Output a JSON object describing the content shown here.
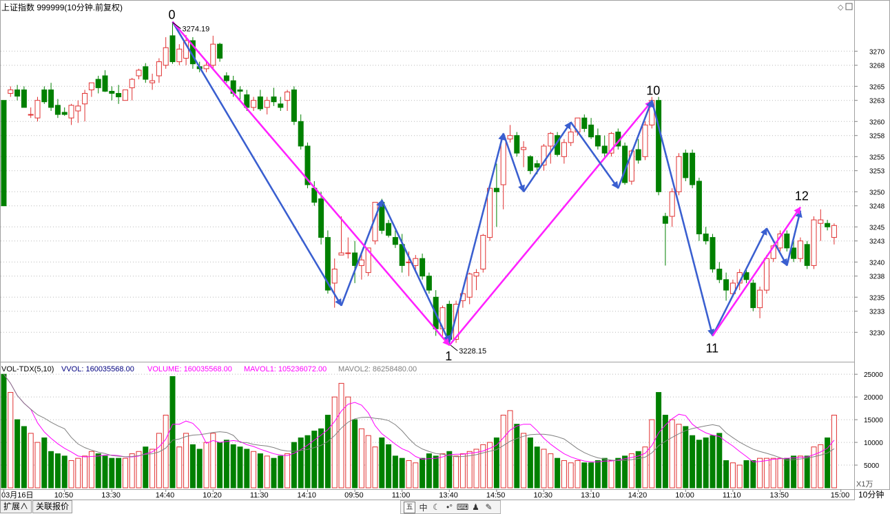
{
  "header": {
    "title": "上证指数 999999(10分钟.前复权)"
  },
  "price_axis": {
    "ticks": [
      "3270",
      "3268",
      "3265",
      "3263",
      "3260",
      "3258",
      "3255",
      "3253",
      "3250",
      "3248",
      "3245",
      "3243",
      "3240",
      "3238",
      "3235",
      "3233",
      "3230"
    ]
  },
  "volume_panel": {
    "indicator": "VOL-TDX(5,10)",
    "vvol_label": "VVOL: 160035568.00",
    "volume_label": "VOLUME: 160035568.00",
    "mavol1_label": "MAVOL1: 105236072.00",
    "mavol2_label": "MAVOL2: 86258480.00",
    "ticks": [
      "25000",
      "20000",
      "15000",
      "10000",
      "5000"
    ],
    "unit": "X1万"
  },
  "time_axis": {
    "labels": [
      "03月16日",
      "10:50",
      "13:30",
      "14:40",
      "10:20",
      "11:30",
      "14:10",
      "09:50",
      "11:00",
      "13:40",
      "14:50",
      "10:30",
      "13:10",
      "14:20",
      "10:00",
      "11:10",
      "13:50",
      "15:00"
    ],
    "period": "10分钟"
  },
  "annotations": {
    "high_label": "3274.19",
    "low_label": "3228.15",
    "wave_labels": [
      "0",
      "1",
      "10",
      "11",
      "12"
    ]
  },
  "bottom_bar": {
    "tabs": [
      "扩展∧",
      "关联报价"
    ],
    "tools": [
      "五",
      "中",
      "moon-icon",
      "settings-icon",
      "keyboard-icon",
      "user-icon",
      "wrench-icon"
    ]
  },
  "colors": {
    "up": "#e03030",
    "down": "#008000",
    "mavol1": "#ff00ff",
    "mavol2": "#808080",
    "wave_blue": "#3a5fd0",
    "wave_magenta": "#ff22ff"
  },
  "chart_data": {
    "type": "candlestick",
    "price_range": [
      3226.5,
      3276.5
    ],
    "volume_range": [
      0,
      27000
    ],
    "candles": [
      [
        3263.0,
        3263.0,
        3248.0,
        3248.0,
        25000
      ],
      [
        3264.0,
        3265.0,
        3263.5,
        3264.5,
        21000
      ],
      [
        3264.5,
        3265.2,
        3263.0,
        3263.6,
        15000
      ],
      [
        3264.5,
        3265.0,
        3262.0,
        3262.0,
        13500
      ],
      [
        3261.0,
        3262.0,
        3260.5,
        3261.0,
        12000
      ],
      [
        3260.5,
        3263.5,
        3260.0,
        3263.0,
        10000
      ],
      [
        3264.5,
        3265.0,
        3262.5,
        3262.8,
        11000
      ],
      [
        3264.5,
        3265.5,
        3261.5,
        3262.0,
        8000
      ],
      [
        3262.3,
        3263.2,
        3260.5,
        3261.0,
        7500
      ],
      [
        3261.3,
        3262.0,
        3260.8,
        3261.0,
        7000
      ],
      [
        3260.5,
        3262.5,
        3259.5,
        3262.3,
        6000
      ],
      [
        3261.5,
        3263.0,
        3259.8,
        3262.2,
        6500
      ],
      [
        3262.5,
        3264.5,
        3260.0,
        3264.0,
        7000
      ],
      [
        3264.5,
        3265.5,
        3263.5,
        3265.5,
        8000
      ],
      [
        3266.0,
        3266.5,
        3264.0,
        3264.8,
        7500
      ],
      [
        3266.5,
        3267.3,
        3264.2,
        3264.3,
        7000
      ],
      [
        3264.3,
        3265.0,
        3263.0,
        3264.0,
        6500
      ],
      [
        3264.0,
        3265.2,
        3262.5,
        3263.5,
        6500
      ],
      [
        3263.0,
        3264.5,
        3263.0,
        3264.5,
        6500
      ],
      [
        3264.8,
        3266.2,
        3263.0,
        3266.0,
        7500
      ],
      [
        3266.5,
        3267.5,
        3266.0,
        3267.3,
        8000
      ],
      [
        3267.8,
        3268.3,
        3265.5,
        3266.0,
        9000
      ],
      [
        3265.5,
        3266.8,
        3264.5,
        3265.8,
        8500
      ],
      [
        3266.5,
        3269.0,
        3265.5,
        3268.5,
        12000
      ],
      [
        3268.0,
        3272.0,
        3267.5,
        3270.5,
        16000
      ],
      [
        3272.2,
        3274.2,
        3268.2,
        3268.5,
        24500
      ],
      [
        3268.5,
        3271.0,
        3268.0,
        3270.3,
        9000
      ],
      [
        3269.0,
        3272.3,
        3268.0,
        3271.5,
        12000
      ],
      [
        3271.5,
        3272.0,
        3267.5,
        3268.2,
        9500
      ],
      [
        3267.8,
        3268.5,
        3267.0,
        3267.5,
        8500
      ],
      [
        3267.5,
        3268.5,
        3267.0,
        3268.0,
        10000
      ],
      [
        3268.0,
        3272.2,
        3267.5,
        3271.0,
        12000
      ],
      [
        3271.0,
        3271.2,
        3268.5,
        3269.0,
        10000
      ],
      [
        3266.5,
        3267.0,
        3265.5,
        3265.8,
        10500
      ],
      [
        3265.8,
        3266.5,
        3263.5,
        3264.0,
        9500
      ],
      [
        3264.5,
        3265.0,
        3263.0,
        3264.3,
        9000
      ],
      [
        3263.8,
        3264.5,
        3261.5,
        3262.0,
        8500
      ],
      [
        3262.0,
        3263.5,
        3261.5,
        3263.0,
        8000
      ],
      [
        3263.5,
        3264.5,
        3261.5,
        3261.8,
        7500
      ],
      [
        3262.0,
        3263.5,
        3261.0,
        3263.0,
        7000
      ],
      [
        3263.5,
        3264.8,
        3262.2,
        3262.8,
        6500
      ],
      [
        3262.5,
        3263.5,
        3261.5,
        3262.0,
        7000
      ],
      [
        3263.0,
        3264.5,
        3261.5,
        3264.2,
        7500
      ],
      [
        3264.5,
        3265.0,
        3259.5,
        3260.0,
        10000
      ],
      [
        3260.0,
        3261.0,
        3256.0,
        3256.5,
        11000
      ],
      [
        3256.5,
        3257.0,
        3250.5,
        3251.0,
        11500
      ],
      [
        3250.5,
        3251.5,
        3248.0,
        3248.5,
        12500
      ],
      [
        3249.0,
        3250.0,
        3242.5,
        3243.5,
        13000
      ],
      [
        3243.5,
        3244.5,
        3235.5,
        3236.0,
        16000
      ],
      [
        3237.0,
        3240.5,
        3233.5,
        3239.0,
        20000
      ],
      [
        3241.0,
        3246.5,
        3241.0,
        3241.3,
        23000
      ],
      [
        3241.3,
        3243.5,
        3240.5,
        3241.3,
        20000
      ],
      [
        3241.3,
        3243.0,
        3237.0,
        3239.5,
        15000
      ],
      [
        3239.5,
        3241.2,
        3237.5,
        3240.3,
        13000
      ],
      [
        3238.5,
        3242.0,
        3238.0,
        3242.0,
        11500
      ],
      [
        3243.0,
        3248.5,
        3242.5,
        3248.5,
        9000
      ],
      [
        3248.5,
        3249.0,
        3244.0,
        3244.5,
        11000
      ],
      [
        3245.5,
        3246.0,
        3243.5,
        3243.8,
        9500
      ],
      [
        3243.5,
        3244.5,
        3242.0,
        3242.5,
        7000
      ],
      [
        3242.5,
        3244.0,
        3238.5,
        3239.5,
        6500
      ],
      [
        3240.0,
        3241.5,
        3238.0,
        3240.0,
        6000
      ],
      [
        3239.5,
        3241.0,
        3238.5,
        3240.5,
        5500
      ],
      [
        3240.5,
        3241.2,
        3237.5,
        3238.0,
        6500
      ],
      [
        3238.0,
        3238.5,
        3235.5,
        3236.0,
        7500
      ],
      [
        3235.0,
        3236.0,
        3229.5,
        3230.5,
        7000
      ],
      [
        3230.5,
        3233.8,
        3229.5,
        3233.5,
        7500
      ],
      [
        3234.0,
        3234.5,
        3228.2,
        3229.0,
        8000
      ],
      [
        3229.0,
        3234.5,
        3228.5,
        3234.0,
        7000
      ],
      [
        3234.5,
        3236.0,
        3233.5,
        3235.5,
        7500
      ],
      [
        3235.0,
        3238.5,
        3234.0,
        3238.3,
        8000
      ],
      [
        3238.0,
        3239.0,
        3236.0,
        3238.5,
        8500
      ],
      [
        3239.0,
        3244.0,
        3238.5,
        3243.8,
        9500
      ],
      [
        3243.5,
        3250.5,
        3243.0,
        3250.5,
        10000
      ],
      [
        3250.5,
        3254.0,
        3245.0,
        3250.0,
        11000
      ],
      [
        3251.0,
        3258.0,
        3247.5,
        3257.5,
        16000
      ],
      [
        3257.5,
        3259.5,
        3257.0,
        3258.0,
        17000
      ],
      [
        3258.0,
        3258.5,
        3255.0,
        3255.5,
        14000
      ],
      [
        3256.0,
        3257.2,
        3253.5,
        3256.3,
        12000
      ],
      [
        3255.0,
        3255.2,
        3252.5,
        3253.0,
        11000
      ],
      [
        3254.0,
        3254.5,
        3252.5,
        3253.5,
        9000
      ],
      [
        3253.8,
        3256.8,
        3253.0,
        3256.5,
        8500
      ],
      [
        3256.5,
        3258.5,
        3254.0,
        3258.3,
        7500
      ],
      [
        3258.0,
        3258.5,
        3255.0,
        3255.3,
        6500
      ],
      [
        3255.0,
        3257.5,
        3254.0,
        3257.0,
        6000
      ],
      [
        3257.0,
        3259.0,
        3256.5,
        3258.5,
        5500
      ],
      [
        3258.5,
        3260.5,
        3258.0,
        3260.5,
        6000
      ],
      [
        3260.5,
        3261.0,
        3258.5,
        3259.0,
        5500
      ],
      [
        3259.5,
        3260.5,
        3257.5,
        3257.8,
        5500
      ],
      [
        3258.0,
        3259.0,
        3256.0,
        3256.5,
        6000
      ],
      [
        3256.5,
        3258.0,
        3255.0,
        3255.5,
        6500
      ],
      [
        3255.5,
        3258.5,
        3255.0,
        3258.3,
        6000
      ],
      [
        3258.5,
        3259.0,
        3256.0,
        3256.5,
        6500
      ],
      [
        3256.5,
        3257.0,
        3251.0,
        3251.3,
        7000
      ],
      [
        3251.5,
        3256.0,
        3251.0,
        3255.8,
        7500
      ],
      [
        3256.0,
        3257.5,
        3254.0,
        3254.5,
        8000
      ],
      [
        3255.0,
        3260.0,
        3254.5,
        3259.5,
        9000
      ],
      [
        3259.5,
        3263.5,
        3259.0,
        3263.0,
        15000
      ],
      [
        3263.0,
        3263.5,
        3249.5,
        3250.0,
        21000
      ],
      [
        3246.5,
        3247.0,
        3239.5,
        3245.5,
        16000
      ],
      [
        3246.5,
        3250.5,
        3245.0,
        3250.0,
        15000
      ],
      [
        3250.0,
        3255.5,
        3249.5,
        3255.0,
        14000
      ],
      [
        3255.5,
        3256.0,
        3251.5,
        3252.0,
        13500
      ],
      [
        3255.5,
        3256.0,
        3250.5,
        3251.0,
        11500
      ],
      [
        3251.5,
        3252.0,
        3243.0,
        3244.0,
        10500
      ],
      [
        3244.0,
        3245.0,
        3242.5,
        3243.0,
        11000
      ],
      [
        3243.5,
        3244.0,
        3238.5,
        3239.0,
        11500
      ],
      [
        3239.0,
        3240.0,
        3237.0,
        3237.5,
        12000
      ],
      [
        3237.5,
        3238.5,
        3234.5,
        3236.0,
        6000
      ],
      [
        3235.5,
        3237.5,
        3235.0,
        3237.0,
        5500
      ],
      [
        3237.0,
        3239.0,
        3236.0,
        3238.5,
        5000
      ],
      [
        3238.5,
        3239.0,
        3237.0,
        3237.5,
        6000
      ],
      [
        3237.0,
        3237.5,
        3233.0,
        3233.5,
        6000
      ],
      [
        3233.5,
        3236.5,
        3232.0,
        3236.0,
        6500
      ],
      [
        3236.0,
        3241.0,
        3235.5,
        3240.5,
        6500
      ],
      [
        3240.5,
        3242.5,
        3240.0,
        3242.3,
        6500
      ],
      [
        3242.0,
        3244.5,
        3241.5,
        3244.0,
        6500
      ],
      [
        3244.0,
        3244.5,
        3241.5,
        3242.0,
        6500
      ],
      [
        3242.0,
        3243.0,
        3240.0,
        3240.5,
        7000
      ],
      [
        3240.5,
        3243.5,
        3240.0,
        3243.0,
        7000
      ],
      [
        3242.5,
        3243.0,
        3239.0,
        3239.5,
        7000
      ],
      [
        3239.5,
        3246.5,
        3239.0,
        3246.0,
        9000
      ],
      [
        3245.5,
        3247.5,
        3243.0,
        3246.0,
        9500
      ],
      [
        3245.5,
        3246.0,
        3244.5,
        3245.0,
        11000
      ],
      [
        3243.5,
        3245.5,
        3242.5,
        3245.2,
        16000
      ]
    ],
    "wave_lines": [
      {
        "color": "blue",
        "from": [
          25,
          3274.19
        ],
        "to": [
          50,
          3233.8
        ]
      },
      {
        "color": "blue",
        "from": [
          50,
          3233.8
        ],
        "to": [
          56,
          3248.8
        ]
      },
      {
        "color": "blue",
        "from": [
          56,
          3248.8
        ],
        "to": [
          66,
          3228.6
        ]
      },
      {
        "color": "magenta",
        "from": [
          25,
          3274.19
        ],
        "to": [
          66,
          3228.15
        ]
      },
      {
        "color": "magenta",
        "from": [
          66,
          3228.15
        ],
        "to": [
          96,
          3262.9
        ]
      },
      {
        "color": "blue",
        "from": [
          66,
          3228.6
        ],
        "to": [
          74,
          3258.3
        ]
      },
      {
        "color": "blue",
        "from": [
          74,
          3258.3
        ],
        "to": [
          77,
          3250.0
        ]
      },
      {
        "color": "blue",
        "from": [
          77,
          3250.0
        ],
        "to": [
          84,
          3259.9
        ]
      },
      {
        "color": "blue",
        "from": [
          84,
          3259.9
        ],
        "to": [
          91,
          3250.5
        ]
      },
      {
        "color": "blue",
        "from": [
          91,
          3250.5
        ],
        "to": [
          96,
          3263.0
        ]
      },
      {
        "color": "blue",
        "from": [
          96,
          3263.0
        ],
        "to": [
          105,
          3229.5
        ]
      },
      {
        "color": "blue",
        "from": [
          105,
          3229.5
        ],
        "to": [
          113,
          3244.8
        ]
      },
      {
        "color": "blue",
        "from": [
          113,
          3244.8
        ],
        "to": [
          116,
          3239.5
        ]
      },
      {
        "color": "blue",
        "from": [
          116,
          3239.5
        ],
        "to": [
          118,
          3247.3
        ]
      },
      {
        "color": "magenta",
        "from": [
          105,
          3229.5
        ],
        "to": [
          118,
          3247.8
        ]
      }
    ]
  }
}
